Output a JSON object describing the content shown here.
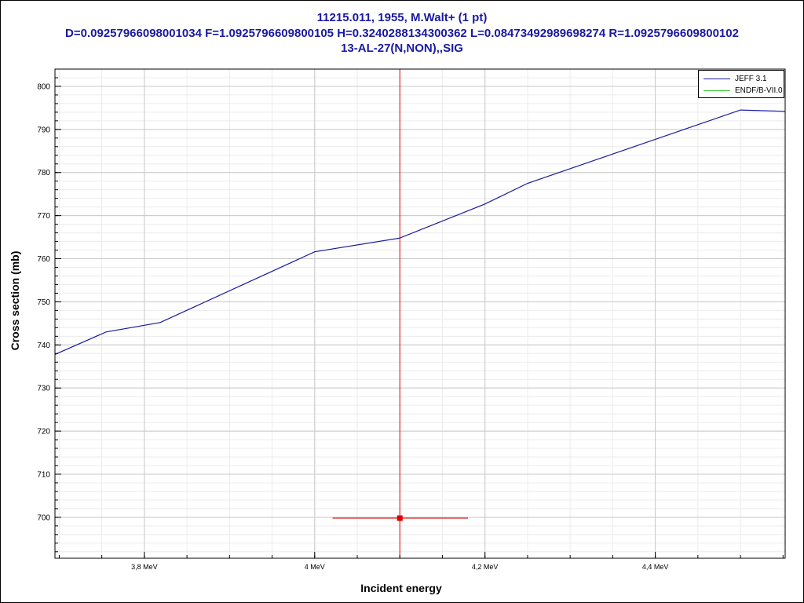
{
  "title_lines": [
    "11215.011, 1955, M.Walt+ (1 pt)",
    "D=0.09257966098001034 F=1.0925796609800105 H=0.3240288134300362 L=0.08473492989698274 R=1.0925796609800102",
    "13-AL-27(N,NON),,SIG"
  ],
  "chart_data": {
    "type": "line",
    "title": "11215.011, 1955, M.Walt+ (1 pt)",
    "xlabel": "Incident energy",
    "ylabel": "Cross section (mb)",
    "xlim": [
      3.695,
      4.5525
    ],
    "ylim": [
      690.5,
      804
    ],
    "x_unit": "MeV",
    "x_ticks": [
      3.8,
      4.0,
      4.2,
      4.4
    ],
    "x_tick_labels": [
      "3,8 MeV",
      "4 MeV",
      "4,2 MeV",
      "4,4 MeV"
    ],
    "y_ticks": [
      700,
      710,
      720,
      730,
      740,
      750,
      760,
      770,
      780,
      790,
      800
    ],
    "y_tick_labels": [
      "700",
      "710",
      "720",
      "730",
      "740",
      "750",
      "760",
      "770",
      "780",
      "790",
      "800"
    ],
    "grid": true,
    "legend_position": "top-right",
    "series": [
      {
        "name": "JEFF 3.1",
        "color": "#1a1aa0",
        "x": [
          3.695,
          3.755,
          3.8185,
          4.0,
          4.1,
          4.2,
          4.25,
          4.5,
          4.5525
        ],
        "y": [
          737.8,
          743.0,
          745.2,
          761.6,
          764.8,
          772.7,
          777.5,
          794.5,
          794.2
        ]
      },
      {
        "name": "ENDF/B-VII.0",
        "color": "#33cc33",
        "x": [],
        "y": []
      }
    ],
    "experimental_point": {
      "x": 4.1,
      "y": 699.8,
      "x_error_low": 4.021,
      "x_error_high": 4.18,
      "color": "#dd0000"
    }
  }
}
